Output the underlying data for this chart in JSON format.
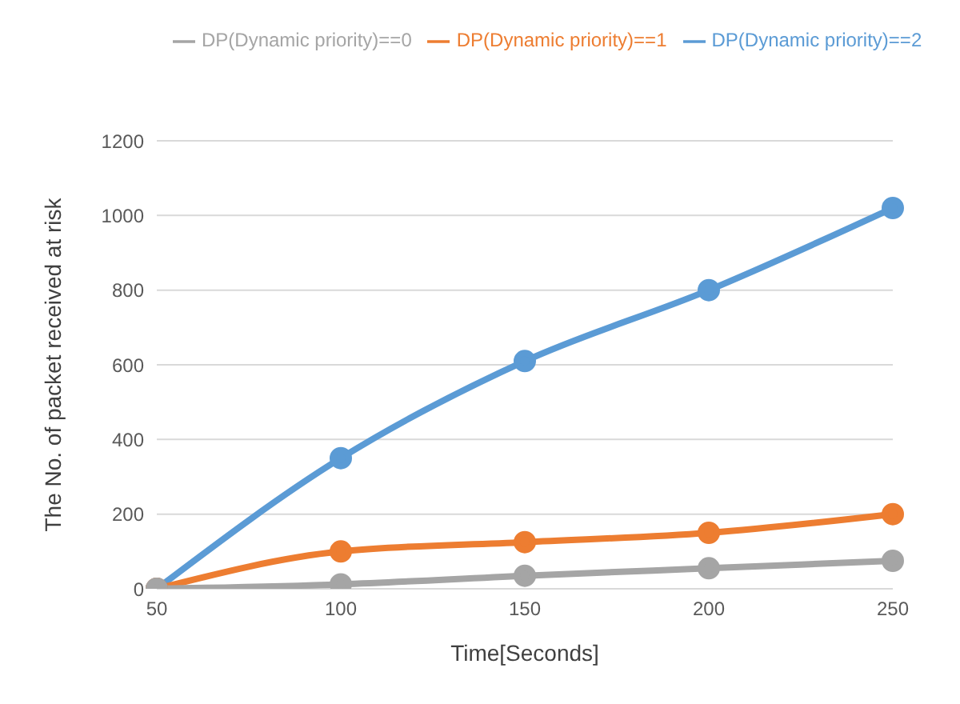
{
  "chart_data": {
    "type": "line",
    "xlabel": "Time[Seconds]",
    "ylabel": "The No. of packet received at risk",
    "categories": [
      "50",
      "100",
      "150",
      "200",
      "250"
    ],
    "series": [
      {
        "name": "DP(Dynamic priority)==2",
        "color": "#5b9bd5",
        "values": [
          0,
          350,
          610,
          800,
          1020
        ]
      },
      {
        "name": "DP(Dynamic priority)==1",
        "color": "#ed7d31",
        "values": [
          0,
          100,
          125,
          150,
          200
        ]
      },
      {
        "name": "DP(Dynamic priority)==0",
        "color": "#a5a5a5",
        "values": [
          0,
          12,
          35,
          55,
          75
        ]
      }
    ],
    "ylim": [
      0,
      1200
    ],
    "yticks": [
      0,
      200,
      400,
      600,
      800,
      1000,
      1200
    ],
    "grid": "y",
    "legend": "top",
    "marker": "circle",
    "line_style": "solid"
  }
}
